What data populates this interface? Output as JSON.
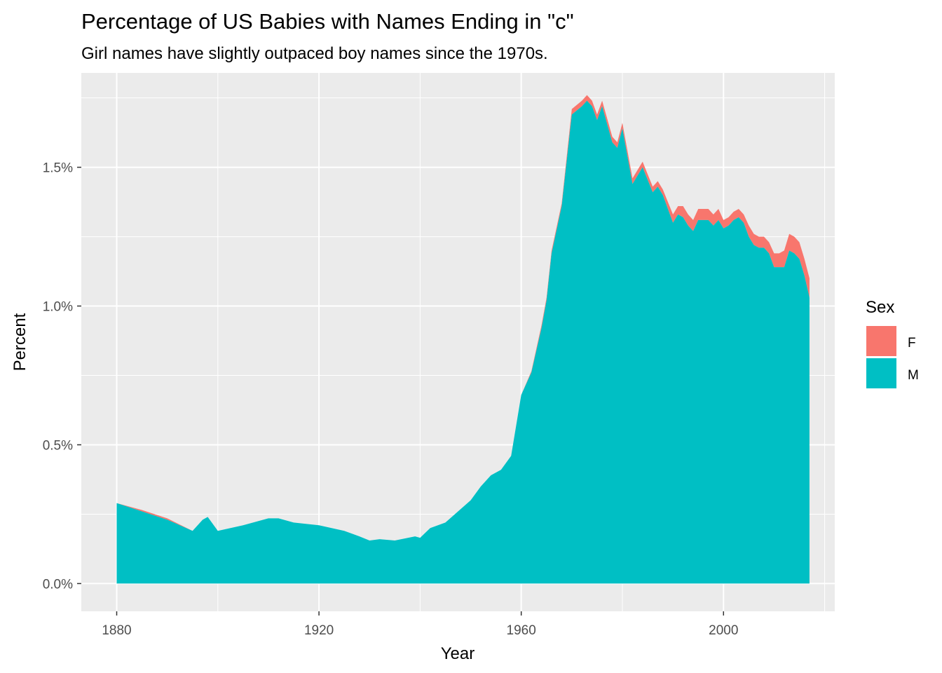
{
  "chart_data": {
    "type": "area",
    "stacked": true,
    "title": "Percentage of US Babies with Names Ending in \"c\"",
    "subtitle": "Girl names have slightly outpaced boy names since the 1970s.",
    "xlabel": "Year",
    "ylabel": "Percent",
    "xlim": [
      1873,
      2022
    ],
    "ylim": [
      -0.1,
      1.84
    ],
    "x_ticks": [
      1880,
      1920,
      1960,
      2000
    ],
    "x_tick_labels": [
      "1880",
      "1920",
      "1960",
      "2000"
    ],
    "y_ticks": [
      0,
      0.5,
      1.0,
      1.5
    ],
    "y_tick_labels": [
      "0.0%",
      "0.5%",
      "1.0%",
      "1.5%"
    ],
    "grid": true,
    "panel_background": "#ebebeb",
    "legend": {
      "title": "Sex",
      "position": "right",
      "entries": [
        {
          "label": "F",
          "color": "#F8766D"
        },
        {
          "label": "M",
          "color": "#00BFC4"
        }
      ]
    },
    "x": [
      1880,
      1885,
      1890,
      1895,
      1897,
      1898,
      1900,
      1905,
      1910,
      1912,
      1915,
      1920,
      1925,
      1928,
      1930,
      1932,
      1935,
      1939,
      1940,
      1942,
      1945,
      1950,
      1952,
      1954,
      1956,
      1958,
      1960,
      1962,
      1964,
      1965,
      1966,
      1968,
      1970,
      1972,
      1973,
      1974,
      1975,
      1976,
      1978,
      1979,
      1980,
      1982,
      1984,
      1986,
      1987,
      1988,
      1990,
      1991,
      1992,
      1993,
      1994,
      1995,
      1996,
      1997,
      1998,
      1999,
      2000,
      2001,
      2002,
      2003,
      2004,
      2005,
      2006,
      2007,
      2008,
      2009,
      2010,
      2011,
      2012,
      2013,
      2014,
      2015,
      2016,
      2017
    ],
    "series": [
      {
        "name": "F",
        "color": "#F8766D",
        "values": [
          0.0,
          0.005,
          0.005,
          0.0,
          0.0,
          0.0,
          0.0,
          0.0,
          0.0,
          0.0,
          0.0,
          0.0,
          0.0,
          0.0,
          0.0,
          0.0,
          0.0,
          0.0,
          0.0,
          0.0,
          0.0,
          0.0,
          0.0,
          0.0,
          0.0,
          0.0,
          0.0,
          0.005,
          0.01,
          0.01,
          0.01,
          0.01,
          0.02,
          0.02,
          0.02,
          0.02,
          0.02,
          0.02,
          0.02,
          0.02,
          0.02,
          0.02,
          0.02,
          0.02,
          0.02,
          0.02,
          0.03,
          0.03,
          0.04,
          0.04,
          0.04,
          0.04,
          0.04,
          0.04,
          0.04,
          0.04,
          0.03,
          0.03,
          0.03,
          0.03,
          0.03,
          0.04,
          0.04,
          0.04,
          0.04,
          0.04,
          0.05,
          0.05,
          0.06,
          0.06,
          0.06,
          0.06,
          0.06,
          0.07
        ]
      },
      {
        "name": "M",
        "color": "#00BFC4",
        "values": [
          0.29,
          0.26,
          0.23,
          0.19,
          0.23,
          0.24,
          0.19,
          0.21,
          0.235,
          0.235,
          0.22,
          0.21,
          0.19,
          0.17,
          0.155,
          0.16,
          0.155,
          0.17,
          0.165,
          0.2,
          0.22,
          0.3,
          0.35,
          0.39,
          0.41,
          0.46,
          0.68,
          0.76,
          0.92,
          1.02,
          1.19,
          1.36,
          1.69,
          1.72,
          1.74,
          1.72,
          1.67,
          1.72,
          1.59,
          1.57,
          1.64,
          1.44,
          1.5,
          1.41,
          1.43,
          1.4,
          1.3,
          1.33,
          1.32,
          1.29,
          1.27,
          1.31,
          1.31,
          1.31,
          1.29,
          1.31,
          1.28,
          1.29,
          1.31,
          1.32,
          1.3,
          1.25,
          1.22,
          1.21,
          1.21,
          1.19,
          1.14,
          1.14,
          1.14,
          1.2,
          1.19,
          1.17,
          1.11,
          1.03
        ]
      }
    ]
  }
}
